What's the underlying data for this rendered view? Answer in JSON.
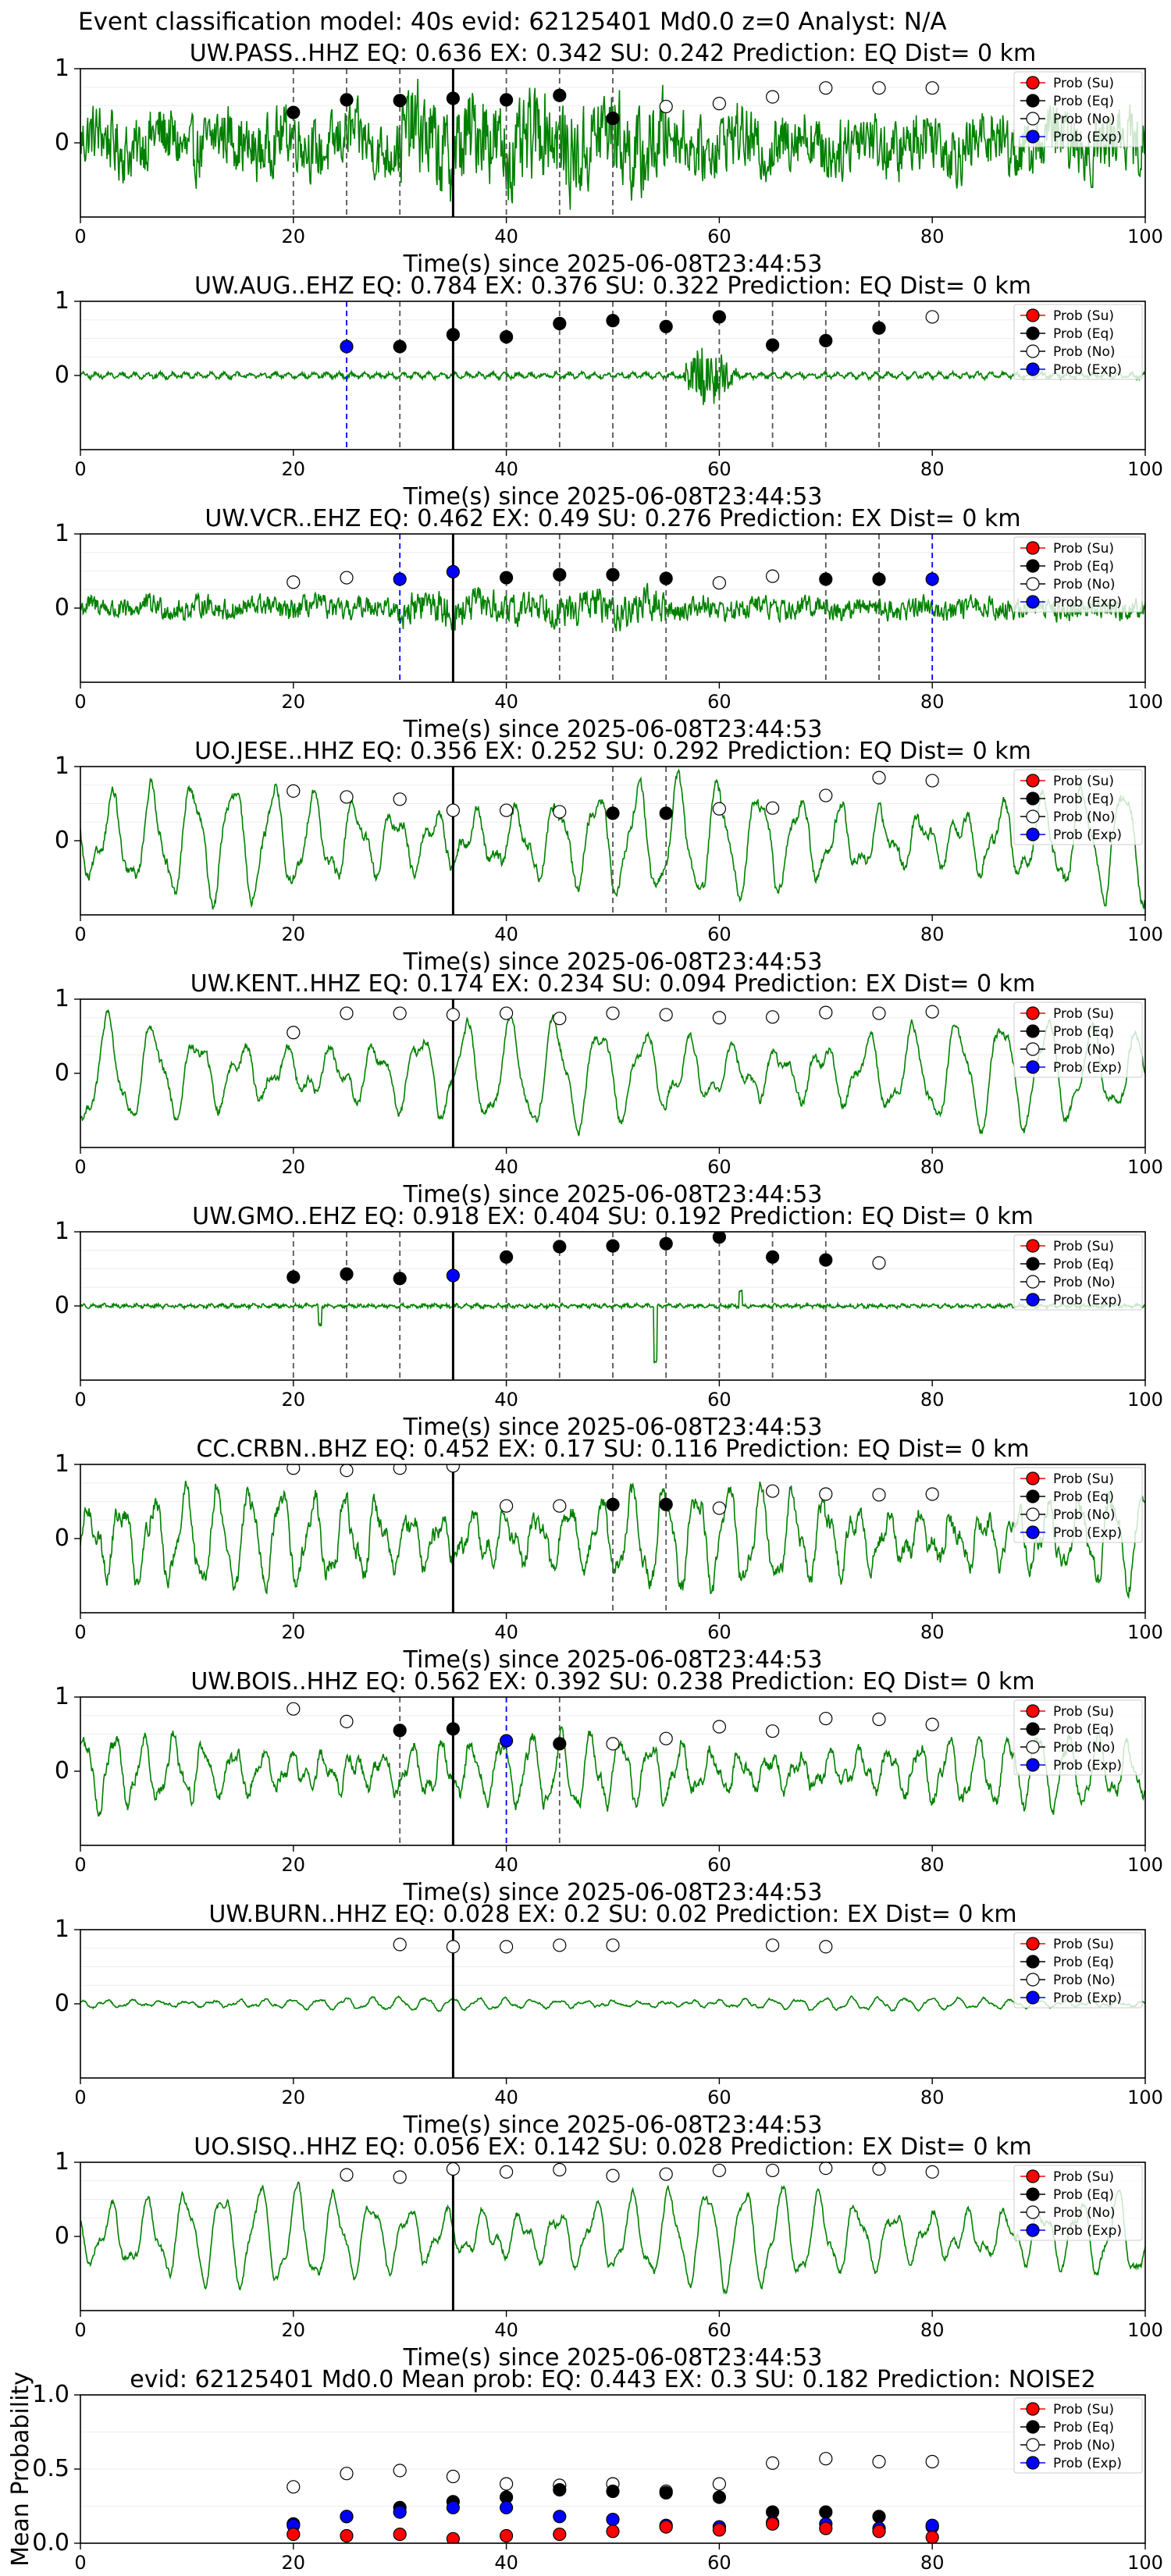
{
  "figure": {
    "suptitle": "Event classification model: 40s evid: 62125401 Md0.0 z=0 Analyst: N/A",
    "xlabel": "Time(s) since 2025-06-08T23:44:53",
    "legend": [
      "Prob (Su)",
      "Prob (Eq)",
      "Prob (No)",
      "Prob (Exp)"
    ],
    "colors": {
      "waveform": "#008000",
      "su": "#ff0000",
      "eq": "#000000",
      "no": "#ffffff",
      "exp": "#0000ff",
      "vline_eq": "#555555",
      "vline_exp": "#0000ff",
      "origin": "#000000"
    }
  },
  "chart_data": [
    {
      "type": "line",
      "station": "UW.PASS..HHZ",
      "title": "UW.PASS..HHZ   EQ: 0.636  EX: 0.342  SU: 0.242   Prediction: EQ    Dist= 0 km",
      "xlim": [
        0,
        100
      ],
      "ylim": [
        -1,
        1
      ],
      "xticks": [
        0,
        20,
        40,
        60,
        80,
        100
      ],
      "yticks": [
        0,
        1
      ],
      "origin_time": 35,
      "waveform": {
        "style": "noisy",
        "amplitude": 0.45,
        "period": 1.5,
        "noise": 0.7
      },
      "points": [
        {
          "x": 20,
          "y": 0.41,
          "class": "eq"
        },
        {
          "x": 25,
          "y": 0.58,
          "class": "eq"
        },
        {
          "x": 30,
          "y": 0.57,
          "class": "eq"
        },
        {
          "x": 35,
          "y": 0.6,
          "class": "eq"
        },
        {
          "x": 40,
          "y": 0.58,
          "class": "eq"
        },
        {
          "x": 45,
          "y": 0.64,
          "class": "eq"
        },
        {
          "x": 50,
          "y": 0.33,
          "class": "eq"
        },
        {
          "x": 55,
          "y": 0.49,
          "class": "no"
        },
        {
          "x": 60,
          "y": 0.53,
          "class": "no"
        },
        {
          "x": 65,
          "y": 0.62,
          "class": "no"
        },
        {
          "x": 70,
          "y": 0.74,
          "class": "no"
        },
        {
          "x": 75,
          "y": 0.74,
          "class": "no"
        },
        {
          "x": 80,
          "y": 0.74,
          "class": "no"
        }
      ]
    },
    {
      "type": "line",
      "station": "UW.AUG..EHZ",
      "title": "UW.AUG..EHZ   EQ: 0.784  EX: 0.376  SU: 0.322   Prediction: EQ    Dist= 0 km",
      "xlim": [
        0,
        100
      ],
      "ylim": [
        -1,
        1
      ],
      "xticks": [
        0,
        20,
        40,
        60,
        80,
        100
      ],
      "yticks": [
        0,
        1
      ],
      "origin_time": 35,
      "waveform": {
        "style": "quiet",
        "amplitude": 0.06,
        "period": 1.2,
        "noise": 0.05,
        "burst_at": 59,
        "burst_amp": 0.5
      },
      "points": [
        {
          "x": 25,
          "y": 0.39,
          "class": "exp"
        },
        {
          "x": 30,
          "y": 0.39,
          "class": "eq"
        },
        {
          "x": 35,
          "y": 0.55,
          "class": "eq"
        },
        {
          "x": 40,
          "y": 0.52,
          "class": "eq"
        },
        {
          "x": 45,
          "y": 0.7,
          "class": "eq"
        },
        {
          "x": 50,
          "y": 0.74,
          "class": "eq"
        },
        {
          "x": 55,
          "y": 0.66,
          "class": "eq"
        },
        {
          "x": 60,
          "y": 0.79,
          "class": "eq"
        },
        {
          "x": 65,
          "y": 0.41,
          "class": "eq"
        },
        {
          "x": 70,
          "y": 0.47,
          "class": "eq"
        },
        {
          "x": 75,
          "y": 0.64,
          "class": "eq"
        },
        {
          "x": 80,
          "y": 0.79,
          "class": "no"
        }
      ]
    },
    {
      "type": "line",
      "station": "UW.VCR..EHZ",
      "title": "UW.VCR..EHZ   EQ: 0.462  EX: 0.49  SU: 0.276   Prediction: EX    Dist= 0 km",
      "xlim": [
        0,
        100
      ],
      "ylim": [
        -1,
        1
      ],
      "xticks": [
        0,
        20,
        40,
        60,
        80,
        100
      ],
      "yticks": [
        0,
        1
      ],
      "origin_time": 35,
      "waveform": {
        "style": "noisy",
        "amplitude": 0.15,
        "period": 1.3,
        "noise": 0.25
      },
      "points": [
        {
          "x": 20,
          "y": 0.35,
          "class": "no"
        },
        {
          "x": 25,
          "y": 0.41,
          "class": "no"
        },
        {
          "x": 30,
          "y": 0.39,
          "class": "exp"
        },
        {
          "x": 35,
          "y": 0.49,
          "class": "exp"
        },
        {
          "x": 40,
          "y": 0.41,
          "class": "eq"
        },
        {
          "x": 45,
          "y": 0.45,
          "class": "eq"
        },
        {
          "x": 50,
          "y": 0.45,
          "class": "eq"
        },
        {
          "x": 55,
          "y": 0.4,
          "class": "eq"
        },
        {
          "x": 60,
          "y": 0.34,
          "class": "no"
        },
        {
          "x": 65,
          "y": 0.43,
          "class": "no"
        },
        {
          "x": 70,
          "y": 0.39,
          "class": "eq"
        },
        {
          "x": 75,
          "y": 0.39,
          "class": "eq"
        },
        {
          "x": 80,
          "y": 0.39,
          "class": "exp"
        }
      ]
    },
    {
      "type": "line",
      "station": "UO.JESE..HHZ",
      "title": "UO.JESE..HHZ   EQ: 0.356  EX: 0.252  SU: 0.292   Prediction: EQ    Dist= 0 km",
      "xlim": [
        0,
        100
      ],
      "ylim": [
        -1,
        1
      ],
      "xticks": [
        0,
        20,
        40,
        60,
        80,
        100
      ],
      "yticks": [
        0,
        1
      ],
      "origin_time": 35,
      "waveform": {
        "style": "wavy",
        "amplitude": 0.65,
        "period": 3.8,
        "noise": 0.15
      },
      "points": [
        {
          "x": 20,
          "y": 0.67,
          "class": "no"
        },
        {
          "x": 25,
          "y": 0.59,
          "class": "no"
        },
        {
          "x": 30,
          "y": 0.56,
          "class": "no"
        },
        {
          "x": 35,
          "y": 0.41,
          "class": "no"
        },
        {
          "x": 40,
          "y": 0.41,
          "class": "no"
        },
        {
          "x": 45,
          "y": 0.39,
          "class": "no"
        },
        {
          "x": 50,
          "y": 0.37,
          "class": "eq"
        },
        {
          "x": 55,
          "y": 0.37,
          "class": "eq"
        },
        {
          "x": 60,
          "y": 0.43,
          "class": "no"
        },
        {
          "x": 65,
          "y": 0.44,
          "class": "no"
        },
        {
          "x": 70,
          "y": 0.61,
          "class": "no"
        },
        {
          "x": 75,
          "y": 0.85,
          "class": "no"
        },
        {
          "x": 80,
          "y": 0.81,
          "class": "no"
        }
      ]
    },
    {
      "type": "line",
      "station": "UW.KENT..HHZ",
      "title": "UW.KENT..HHZ   EQ: 0.174  EX: 0.234  SU: 0.094   Prediction: EX    Dist= 0 km",
      "xlim": [
        0,
        100
      ],
      "ylim": [
        -1,
        1
      ],
      "xticks": [
        0,
        20,
        40,
        60,
        80,
        100
      ],
      "yticks": [
        0,
        1
      ],
      "origin_time": 35,
      "waveform": {
        "style": "wavy",
        "amplitude": 0.6,
        "period": 4.2,
        "noise": 0.12
      },
      "points": [
        {
          "x": 20,
          "y": 0.55,
          "class": "no"
        },
        {
          "x": 25,
          "y": 0.81,
          "class": "no"
        },
        {
          "x": 30,
          "y": 0.81,
          "class": "no"
        },
        {
          "x": 35,
          "y": 0.79,
          "class": "no"
        },
        {
          "x": 40,
          "y": 0.81,
          "class": "no"
        },
        {
          "x": 45,
          "y": 0.74,
          "class": "no"
        },
        {
          "x": 50,
          "y": 0.81,
          "class": "no"
        },
        {
          "x": 55,
          "y": 0.79,
          "class": "no"
        },
        {
          "x": 60,
          "y": 0.75,
          "class": "no"
        },
        {
          "x": 65,
          "y": 0.76,
          "class": "no"
        },
        {
          "x": 70,
          "y": 0.82,
          "class": "no"
        },
        {
          "x": 75,
          "y": 0.81,
          "class": "no"
        },
        {
          "x": 80,
          "y": 0.83,
          "class": "no"
        }
      ]
    },
    {
      "type": "line",
      "station": "UW.GMO..EHZ",
      "title": "UW.GMO..EHZ   EQ: 0.918  EX: 0.404  SU: 0.192   Prediction: EQ    Dist= 0 km",
      "xlim": [
        0,
        100
      ],
      "ylim": [
        -1,
        1
      ],
      "xticks": [
        0,
        20,
        40,
        60,
        80,
        100
      ],
      "yticks": [
        0,
        1
      ],
      "origin_time": 35,
      "waveform": {
        "style": "quiet",
        "amplitude": 0.03,
        "period": 1.0,
        "noise": 0.04,
        "spikes": [
          {
            "x": 22.5,
            "amp": -0.25
          },
          {
            "x": 54,
            "amp": -0.75
          },
          {
            "x": 62,
            "amp": 0.2
          }
        ]
      },
      "points": [
        {
          "x": 20,
          "y": 0.39,
          "class": "eq"
        },
        {
          "x": 25,
          "y": 0.43,
          "class": "eq"
        },
        {
          "x": 30,
          "y": 0.37,
          "class": "eq"
        },
        {
          "x": 35,
          "y": 0.41,
          "class": "exp"
        },
        {
          "x": 40,
          "y": 0.66,
          "class": "eq"
        },
        {
          "x": 45,
          "y": 0.8,
          "class": "eq"
        },
        {
          "x": 50,
          "y": 0.81,
          "class": "eq"
        },
        {
          "x": 55,
          "y": 0.84,
          "class": "eq"
        },
        {
          "x": 60,
          "y": 0.93,
          "class": "eq"
        },
        {
          "x": 65,
          "y": 0.66,
          "class": "eq"
        },
        {
          "x": 70,
          "y": 0.62,
          "class": "eq"
        },
        {
          "x": 75,
          "y": 0.58,
          "class": "no"
        }
      ]
    },
    {
      "type": "line",
      "station": "CC.CRBN..BHZ",
      "title": "CC.CRBN..BHZ   EQ: 0.452  EX: 0.17  SU: 0.116   Prediction: EQ    Dist= 0 km",
      "xlim": [
        0,
        100
      ],
      "ylim": [
        -1,
        1
      ],
      "xticks": [
        0,
        20,
        40,
        60,
        80,
        100
      ],
      "yticks": [
        0,
        1
      ],
      "origin_time": 35,
      "waveform": {
        "style": "wavy",
        "amplitude": 0.55,
        "period": 3.0,
        "noise": 0.25
      },
      "points": [
        {
          "x": 20,
          "y": 0.95,
          "class": "no"
        },
        {
          "x": 25,
          "y": 0.92,
          "class": "no"
        },
        {
          "x": 30,
          "y": 0.95,
          "class": "no"
        },
        {
          "x": 35,
          "y": 0.98,
          "class": "no"
        },
        {
          "x": 40,
          "y": 0.44,
          "class": "no"
        },
        {
          "x": 45,
          "y": 0.44,
          "class": "no"
        },
        {
          "x": 50,
          "y": 0.46,
          "class": "eq"
        },
        {
          "x": 55,
          "y": 0.46,
          "class": "eq"
        },
        {
          "x": 60,
          "y": 0.41,
          "class": "no"
        },
        {
          "x": 65,
          "y": 0.64,
          "class": "no"
        },
        {
          "x": 70,
          "y": 0.6,
          "class": "no"
        },
        {
          "x": 75,
          "y": 0.59,
          "class": "no"
        },
        {
          "x": 80,
          "y": 0.6,
          "class": "no"
        }
      ]
    },
    {
      "type": "line",
      "station": "UW.BOIS..HHZ",
      "title": "UW.BOIS..HHZ   EQ: 0.562  EX: 0.392  SU: 0.238   Prediction: EQ    Dist= 0 km",
      "xlim": [
        0,
        100
      ],
      "ylim": [
        -1,
        1
      ],
      "xticks": [
        0,
        20,
        40,
        60,
        80,
        100
      ],
      "yticks": [
        0,
        1
      ],
      "origin_time": 35,
      "waveform": {
        "style": "wavy",
        "amplitude": 0.4,
        "period": 2.8,
        "noise": 0.18
      },
      "points": [
        {
          "x": 20,
          "y": 0.84,
          "class": "no"
        },
        {
          "x": 25,
          "y": 0.67,
          "class": "no"
        },
        {
          "x": 30,
          "y": 0.55,
          "class": "eq"
        },
        {
          "x": 35,
          "y": 0.57,
          "class": "eq"
        },
        {
          "x": 40,
          "y": 0.41,
          "class": "exp"
        },
        {
          "x": 45,
          "y": 0.37,
          "class": "eq"
        },
        {
          "x": 50,
          "y": 0.37,
          "class": "no"
        },
        {
          "x": 55,
          "y": 0.44,
          "class": "no"
        },
        {
          "x": 60,
          "y": 0.6,
          "class": "no"
        },
        {
          "x": 65,
          "y": 0.54,
          "class": "no"
        },
        {
          "x": 70,
          "y": 0.71,
          "class": "no"
        },
        {
          "x": 75,
          "y": 0.7,
          "class": "no"
        },
        {
          "x": 80,
          "y": 0.63,
          "class": "no"
        }
      ]
    },
    {
      "type": "line",
      "station": "UW.BURN..HHZ",
      "title": "UW.BURN..HHZ   EQ: 0.028  EX: 0.2  SU: 0.02   Prediction: EX    Dist= 0 km",
      "xlim": [
        0,
        100
      ],
      "ylim": [
        -1,
        1
      ],
      "xticks": [
        0,
        20,
        40,
        60,
        80,
        100
      ],
      "yticks": [
        0,
        1
      ],
      "origin_time": 35,
      "waveform": {
        "style": "wavy",
        "amplitude": 0.07,
        "period": 2.5,
        "noise": 0.03
      },
      "points": [
        {
          "x": 30,
          "y": 0.8,
          "class": "no"
        },
        {
          "x": 35,
          "y": 0.77,
          "class": "no"
        },
        {
          "x": 40,
          "y": 0.77,
          "class": "no"
        },
        {
          "x": 45,
          "y": 0.79,
          "class": "no"
        },
        {
          "x": 50,
          "y": 0.79,
          "class": "no"
        },
        {
          "x": 65,
          "y": 0.79,
          "class": "no"
        },
        {
          "x": 70,
          "y": 0.77,
          "class": "no"
        }
      ]
    },
    {
      "type": "line",
      "station": "UO.SISQ..HHZ",
      "title": "UO.SISQ..HHZ   EQ: 0.056  EX: 0.142  SU: 0.028   Prediction: EX    Dist= 0 km",
      "xlim": [
        0,
        100
      ],
      "ylim": [
        -1,
        1
      ],
      "xticks": [
        0,
        20,
        40,
        60,
        80,
        100
      ],
      "yticks": [
        0,
        1
      ],
      "origin_time": 35,
      "waveform": {
        "style": "wavy",
        "amplitude": 0.55,
        "period": 3.5,
        "noise": 0.1
      },
      "points": [
        {
          "x": 25,
          "y": 0.83,
          "class": "no"
        },
        {
          "x": 30,
          "y": 0.8,
          "class": "no"
        },
        {
          "x": 35,
          "y": 0.91,
          "class": "no"
        },
        {
          "x": 40,
          "y": 0.87,
          "class": "no"
        },
        {
          "x": 45,
          "y": 0.9,
          "class": "no"
        },
        {
          "x": 50,
          "y": 0.82,
          "class": "no"
        },
        {
          "x": 55,
          "y": 0.84,
          "class": "no"
        },
        {
          "x": 60,
          "y": 0.89,
          "class": "no"
        },
        {
          "x": 65,
          "y": 0.89,
          "class": "no"
        },
        {
          "x": 70,
          "y": 0.92,
          "class": "no"
        },
        {
          "x": 75,
          "y": 0.91,
          "class": "no"
        },
        {
          "x": 80,
          "y": 0.87,
          "class": "no"
        }
      ]
    },
    {
      "type": "scatter",
      "station": "summary",
      "title": "evid: 62125401  Md0.0   Mean prob:   EQ: 0.443  EX: 0.3  SU: 0.182   Prediction: NOISE2",
      "ylabel": "Mean Probability",
      "xlim": [
        0,
        100
      ],
      "ylim": [
        0,
        1
      ],
      "xticks": [
        0,
        20,
        40,
        60,
        80,
        100
      ],
      "yticks": [
        0.0,
        0.5,
        1.0
      ],
      "ytick_labels": [
        "0.0",
        "0.5",
        "1.0"
      ],
      "x": [
        20,
        25,
        30,
        35,
        40,
        45,
        50,
        55,
        60,
        65,
        70,
        75,
        80
      ],
      "series": [
        {
          "name": "Prob (No)",
          "class": "no",
          "values": [
            0.38,
            0.47,
            0.49,
            0.45,
            0.4,
            0.39,
            0.4,
            0.35,
            0.4,
            0.54,
            0.57,
            0.55,
            0.55
          ]
        },
        {
          "name": "Prob (Eq)",
          "class": "eq",
          "values": [
            0.13,
            0.18,
            0.24,
            0.28,
            0.31,
            0.36,
            0.35,
            0.34,
            0.31,
            0.21,
            0.21,
            0.18,
            0.11
          ]
        },
        {
          "name": "Prob (Exp)",
          "class": "exp",
          "values": [
            0.12,
            0.18,
            0.21,
            0.24,
            0.24,
            0.18,
            0.16,
            0.12,
            0.11,
            0.14,
            0.13,
            0.1,
            0.12
          ]
        },
        {
          "name": "Prob (Su)",
          "class": "su",
          "values": [
            0.06,
            0.05,
            0.06,
            0.03,
            0.05,
            0.06,
            0.08,
            0.11,
            0.09,
            0.13,
            0.1,
            0.08,
            0.04
          ]
        }
      ]
    }
  ]
}
